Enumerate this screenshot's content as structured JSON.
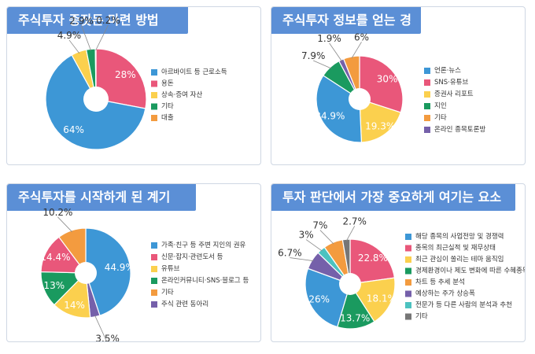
{
  "colors": {
    "blue": "#3d97d6",
    "pink": "#e9577a",
    "yellow": "#fbd04e",
    "green": "#1a9a5f",
    "orange": "#f39b3f",
    "purple": "#7560aa",
    "teal": "#4cc2c0",
    "gray": "#767676",
    "title_bg": "#5b8fd6"
  },
  "chart_data": [
    {
      "type": "pie",
      "title": "주식투자 종잣돈 마련 방법",
      "legend_position": "right",
      "legend": [
        "아르바이트 등 근로소득",
        "용돈",
        "상속·증여 자산",
        "기타",
        "대출"
      ],
      "slices": [
        {
          "label": "아르바이트 등 근로소득",
          "value": 64,
          "text": "64%",
          "color": "blue"
        },
        {
          "label": "용돈",
          "value": 28,
          "text": "28%",
          "color": "pink"
        },
        {
          "label": "상속·증여 자산",
          "value": 4.9,
          "text": "4.9%",
          "color": "yellow"
        },
        {
          "label": "기타",
          "value": 2.9,
          "text": "2.9%",
          "color": "green"
        },
        {
          "label": "대출",
          "value": 0.2,
          "text": "0.2%",
          "color": "orange"
        }
      ]
    },
    {
      "type": "pie",
      "title": "주식투자 정보를 얻는 경로",
      "legend_position": "right",
      "legend": [
        "언론·뉴스",
        "SNS·유튜브",
        "증권사 리포트",
        "지인",
        "기타",
        "온라인 종목토론방"
      ],
      "slices": [
        {
          "label": "언론·뉴스",
          "value": 34.9,
          "text": "34.9%",
          "color": "blue"
        },
        {
          "label": "SNS·유튜브",
          "value": 30,
          "text": "30%",
          "color": "pink"
        },
        {
          "label": "증권사 리포트",
          "value": 19.3,
          "text": "19.3%",
          "color": "yellow"
        },
        {
          "label": "지인",
          "value": 7.9,
          "text": "7.9%",
          "color": "green"
        },
        {
          "label": "기타",
          "value": 6,
          "text": "6%",
          "color": "orange"
        },
        {
          "label": "온라인 종목토론방",
          "value": 1.9,
          "text": "1.9%",
          "color": "purple"
        }
      ]
    },
    {
      "type": "pie",
      "title": "주식투자를 시작하게 된 계기",
      "legend_position": "right",
      "legend": [
        "가족·친구 등 주변 지인의 권유",
        "신문·잡지·관련도서 등",
        "유튜브",
        "온라인커뮤니티·SNS·블로그 등",
        "기타",
        "주식 관련 동아리"
      ],
      "slices": [
        {
          "label": "가족·친구 등 주변 지인의 권유",
          "value": 44.9,
          "text": "44.9%",
          "color": "blue"
        },
        {
          "label": "신문·잡지·관련도서 등",
          "value": 14.4,
          "text": "14.4%",
          "color": "pink"
        },
        {
          "label": "유튜브",
          "value": 14,
          "text": "14%",
          "color": "yellow"
        },
        {
          "label": "온라인커뮤니티·SNS·블로그 등",
          "value": 13,
          "text": "13%",
          "color": "green"
        },
        {
          "label": "기타",
          "value": 10.2,
          "text": "10.2%",
          "color": "orange"
        },
        {
          "label": "주식 관련 동아리",
          "value": 3.5,
          "text": "3.5%",
          "color": "purple"
        }
      ]
    },
    {
      "type": "pie",
      "title": "투자 판단에서 가장 중요하게 여기는 요소",
      "legend_position": "right",
      "legend": [
        "해당 종목의 사업전망 및 경쟁력",
        "종목의 최근실적 및 재무상태",
        "최근 관심이 쏠리는 테마 움직임",
        "경제환경이나 제도 변화에 따른 수혜종목",
        "차트 등 추세 분석",
        "예상하는 주가 상승폭",
        "전문가 등 다른 사람의 분석과 추천",
        "기타"
      ],
      "slices": [
        {
          "label": "해당 종목의 사업전망 및 경쟁력",
          "value": 26,
          "text": "26%",
          "color": "blue"
        },
        {
          "label": "종목의 최근실적 및 재무상태",
          "value": 22.8,
          "text": "22.8%",
          "color": "pink"
        },
        {
          "label": "최근 관심이 쏠리는 테마 움직임",
          "value": 18.1,
          "text": "18.1%",
          "color": "yellow"
        },
        {
          "label": "경제환경이나 제도 변화에 따른 수혜종목",
          "value": 13.7,
          "text": "13.7%",
          "color": "green"
        },
        {
          "label": "차트 등 추세 분석",
          "value": 7,
          "text": "7%",
          "color": "orange"
        },
        {
          "label": "예상하는 주가 상승폭",
          "value": 6.7,
          "text": "6.7%",
          "color": "purple"
        },
        {
          "label": "전문가 등 다른 사람의 분석과 추천",
          "value": 3,
          "text": "3%",
          "color": "teal"
        },
        {
          "label": "기타",
          "value": 2.7,
          "text": "2.7%",
          "color": "gray"
        }
      ]
    }
  ]
}
